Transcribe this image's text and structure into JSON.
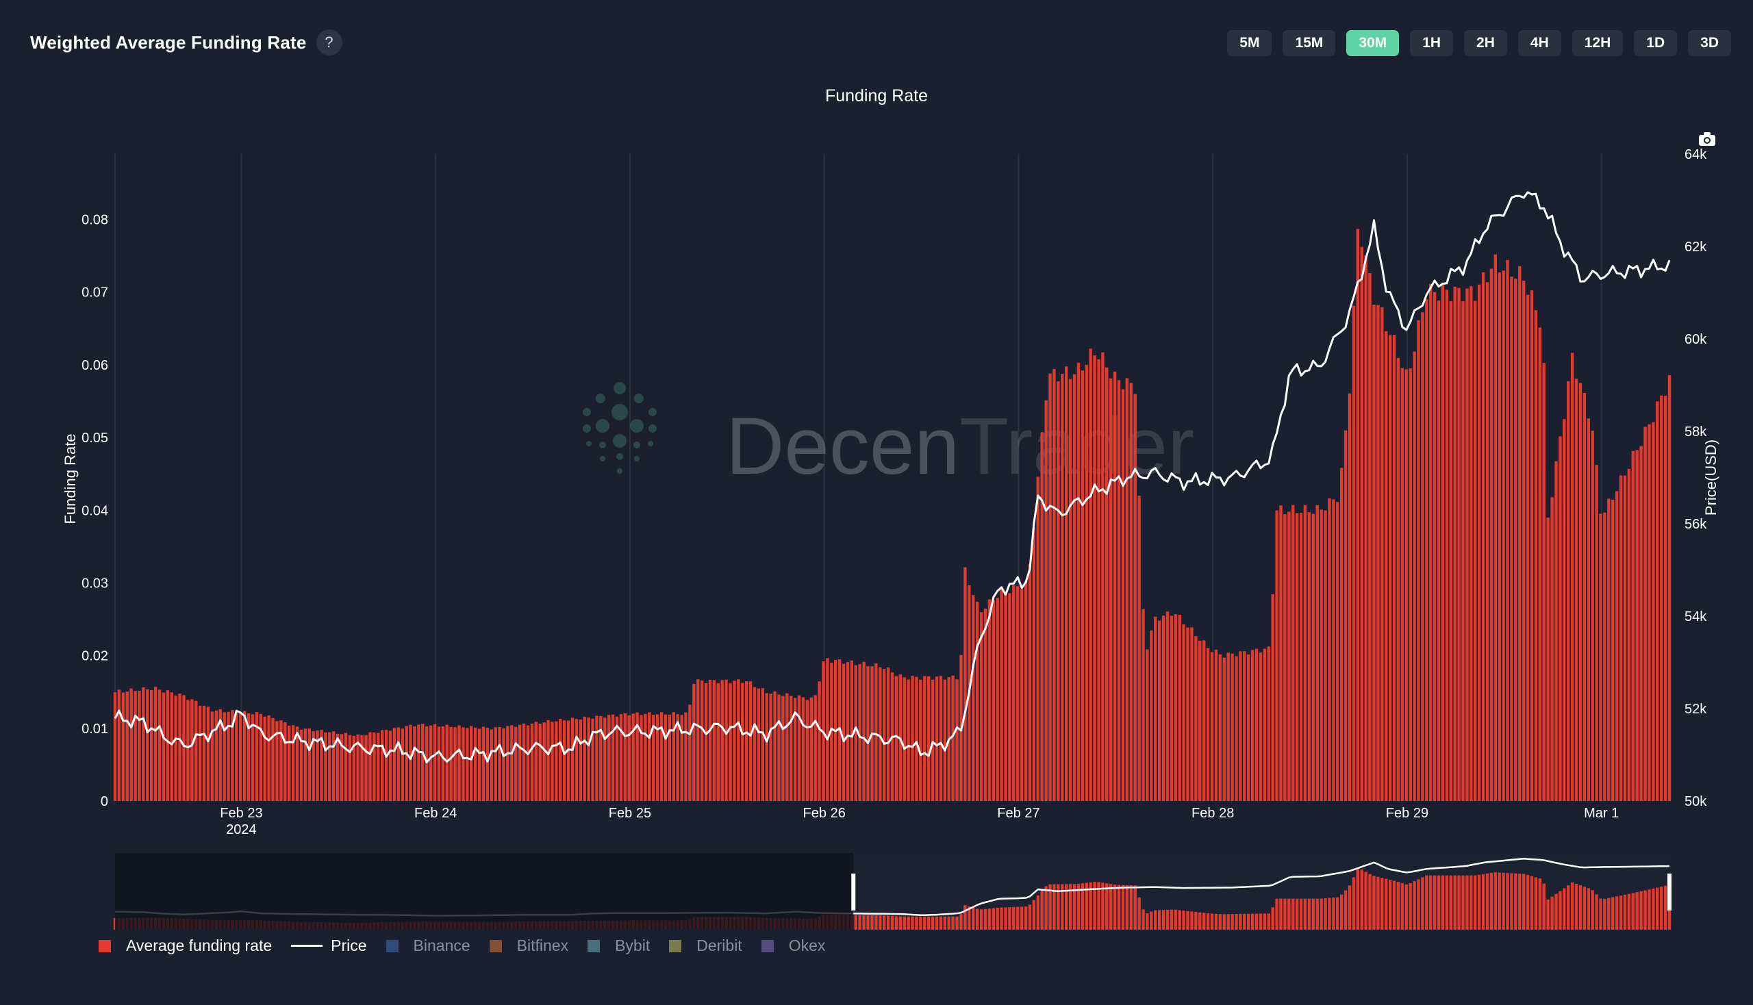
{
  "header": {
    "title": "Weighted Average Funding Rate",
    "help_label": "?"
  },
  "timeframes": [
    {
      "label": "5M",
      "active": false
    },
    {
      "label": "15M",
      "active": false
    },
    {
      "label": "30M",
      "active": true
    },
    {
      "label": "1H",
      "active": false
    },
    {
      "label": "2H",
      "active": false
    },
    {
      "label": "4H",
      "active": false
    },
    {
      "label": "12H",
      "active": false
    },
    {
      "label": "1D",
      "active": false
    },
    {
      "label": "3D",
      "active": false
    }
  ],
  "watermark": {
    "text_a": "Decen",
    "text_b": "Trader"
  },
  "legend": [
    {
      "label": "Average funding rate",
      "color": "#e23b2e",
      "kind": "square",
      "muted": false
    },
    {
      "label": "Price",
      "color": "#ffffff",
      "kind": "line",
      "muted": false
    },
    {
      "label": "Binance",
      "color": "#3a5a9a",
      "kind": "square",
      "muted": true
    },
    {
      "label": "Bitfinex",
      "color": "#a8613a",
      "kind": "square",
      "muted": true
    },
    {
      "label": "Bybit",
      "color": "#5a8a9a",
      "kind": "square",
      "muted": true
    },
    {
      "label": "Deribit",
      "color": "#9a9a5a",
      "kind": "square",
      "muted": true
    },
    {
      "label": "Okex",
      "color": "#6a5a9a",
      "kind": "square",
      "muted": true
    }
  ],
  "colors": {
    "bar": "#e23b2e",
    "bar_edge": "#8b1d16",
    "price": "#ffffff",
    "grid": "#2a3142",
    "text": "#ffffff",
    "navigator_mask": "#10131c",
    "accent": "#5fd3a7"
  },
  "chart_data": {
    "type": "bar",
    "title": "Funding Rate",
    "ylabel": "Funding Rate",
    "y2label": "Price(USD)",
    "ylim": [
      0,
      0.089
    ],
    "y2lim": [
      50000,
      64000
    ],
    "yticks": [
      0,
      0.01,
      0.02,
      0.03,
      0.04,
      0.05,
      0.06,
      0.07,
      0.08
    ],
    "ytick_labels": [
      "0",
      "0.01",
      "0.02",
      "0.03",
      "0.04",
      "0.05",
      "0.06",
      "0.07",
      "0.08"
    ],
    "y2ticks": [
      50000,
      52000,
      54000,
      56000,
      58000,
      60000,
      62000,
      64000
    ],
    "y2tick_labels": [
      "50k",
      "52k",
      "54k",
      "56k",
      "58k",
      "60k",
      "62k",
      "64k"
    ],
    "xlim_days": [
      22.35,
      30.35
    ],
    "xticks": [
      {
        "day": 23,
        "label": "Feb 23",
        "sublabel": "2024"
      },
      {
        "day": 24,
        "label": "Feb 24",
        "sublabel": ""
      },
      {
        "day": 25,
        "label": "Feb 25",
        "sublabel": ""
      },
      {
        "day": 26,
        "label": "Feb 26",
        "sublabel": ""
      },
      {
        "day": 27,
        "label": "Feb 27",
        "sublabel": ""
      },
      {
        "day": 28,
        "label": "Feb 28",
        "sublabel": ""
      },
      {
        "day": 29,
        "label": "Feb 29",
        "sublabel": ""
      },
      {
        "day": 30,
        "label": "Mar 1",
        "sublabel": ""
      }
    ],
    "interval_hours": 0.5,
    "grid": true,
    "legend_position": "bottom-left",
    "navigator_window": {
      "start_fraction": 0.475,
      "end_fraction": 1.0
    },
    "series": [
      {
        "name": "Average funding rate",
        "kind": "bar",
        "axis": "left",
        "anchors": [
          [
            22.35,
            0.015
          ],
          [
            22.55,
            0.0155
          ],
          [
            22.7,
            0.0145
          ],
          [
            22.85,
            0.0125
          ],
          [
            23.1,
            0.012
          ],
          [
            23.3,
            0.01
          ],
          [
            23.6,
            0.009
          ],
          [
            23.9,
            0.0105
          ],
          [
            24.3,
            0.01
          ],
          [
            24.6,
            0.011
          ],
          [
            24.8,
            0.0115
          ],
          [
            25.0,
            0.012
          ],
          [
            25.3,
            0.012
          ],
          [
            25.33,
            0.0165
          ],
          [
            25.6,
            0.0165
          ],
          [
            25.7,
            0.015
          ],
          [
            25.95,
            0.014
          ],
          [
            26.0,
            0.0195
          ],
          [
            26.3,
            0.0185
          ],
          [
            26.4,
            0.017
          ],
          [
            26.7,
            0.017
          ],
          [
            26.72,
            0.032
          ],
          [
            26.8,
            0.026
          ],
          [
            26.9,
            0.0285
          ],
          [
            27.05,
            0.03
          ],
          [
            27.15,
            0.0585
          ],
          [
            27.3,
            0.059
          ],
          [
            27.4,
            0.062
          ],
          [
            27.5,
            0.058
          ],
          [
            27.6,
            0.057
          ],
          [
            27.65,
            0.02
          ],
          [
            27.7,
            0.025
          ],
          [
            27.8,
            0.026
          ],
          [
            27.98,
            0.021
          ],
          [
            28.05,
            0.02
          ],
          [
            28.3,
            0.021
          ],
          [
            28.32,
            0.04
          ],
          [
            28.55,
            0.04
          ],
          [
            28.65,
            0.042
          ],
          [
            28.7,
            0.055
          ],
          [
            28.75,
            0.08
          ],
          [
            28.82,
            0.07
          ],
          [
            28.95,
            0.062
          ],
          [
            29.0,
            0.058
          ],
          [
            29.05,
            0.064
          ],
          [
            29.1,
            0.07
          ],
          [
            29.35,
            0.07
          ],
          [
            29.45,
            0.074
          ],
          [
            29.6,
            0.072
          ],
          [
            29.7,
            0.065
          ],
          [
            29.72,
            0.038
          ],
          [
            29.8,
            0.052
          ],
          [
            29.85,
            0.061
          ],
          [
            29.95,
            0.052
          ],
          [
            30.0,
            0.039
          ],
          [
            30.1,
            0.044
          ],
          [
            30.25,
            0.052
          ],
          [
            30.35,
            0.058
          ]
        ]
      },
      {
        "name": "Price",
        "kind": "line",
        "axis": "right",
        "anchors": [
          [
            22.35,
            51800
          ],
          [
            22.5,
            51700
          ],
          [
            22.6,
            51400
          ],
          [
            22.7,
            51200
          ],
          [
            22.8,
            51400
          ],
          [
            22.95,
            51700
          ],
          [
            23.0,
            51900
          ],
          [
            23.1,
            51450
          ],
          [
            23.3,
            51300
          ],
          [
            23.6,
            51150
          ],
          [
            23.8,
            51100
          ],
          [
            24.0,
            50950
          ],
          [
            24.2,
            51000
          ],
          [
            24.5,
            51150
          ],
          [
            24.7,
            51150
          ],
          [
            24.8,
            51400
          ],
          [
            24.9,
            51500
          ],
          [
            25.1,
            51500
          ],
          [
            25.3,
            51550
          ],
          [
            25.5,
            51600
          ],
          [
            25.7,
            51450
          ],
          [
            25.85,
            51800
          ],
          [
            26.0,
            51500
          ],
          [
            26.2,
            51400
          ],
          [
            26.4,
            51300
          ],
          [
            26.5,
            51050
          ],
          [
            26.6,
            51200
          ],
          [
            26.7,
            51500
          ],
          [
            26.8,
            53500
          ],
          [
            26.9,
            54600
          ],
          [
            27.0,
            54700
          ],
          [
            27.05,
            54800
          ],
          [
            27.1,
            56600
          ],
          [
            27.2,
            56200
          ],
          [
            27.4,
            56700
          ],
          [
            27.55,
            57000
          ],
          [
            27.7,
            57100
          ],
          [
            27.85,
            56900
          ],
          [
            28.1,
            57000
          ],
          [
            28.3,
            57400
          ],
          [
            28.4,
            59300
          ],
          [
            28.55,
            59400
          ],
          [
            28.7,
            60500
          ],
          [
            28.75,
            61200
          ],
          [
            28.83,
            62400
          ],
          [
            28.9,
            61000
          ],
          [
            29.0,
            60200
          ],
          [
            29.1,
            61000
          ],
          [
            29.3,
            61600
          ],
          [
            29.4,
            62400
          ],
          [
            29.6,
            63200
          ],
          [
            29.7,
            62900
          ],
          [
            29.8,
            62000
          ],
          [
            29.9,
            61300
          ],
          [
            30.0,
            61400
          ],
          [
            30.2,
            61500
          ],
          [
            30.35,
            61600
          ]
        ]
      }
    ]
  }
}
